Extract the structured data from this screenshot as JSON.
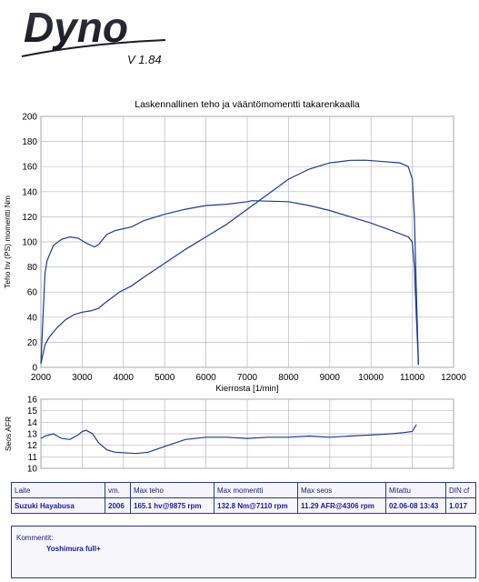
{
  "logo": {
    "title": "Dyno",
    "version": "V 1.84"
  },
  "chart_data": [
    {
      "type": "line",
      "title": "Laskennallinen teho ja vääntömomentti takarenkaalla",
      "xlabel": "Kierrosta [1/min]",
      "ylabel": "Teho hv (PS) momentti Nm",
      "xlim": [
        2000,
        12000
      ],
      "ylim": [
        0,
        200
      ],
      "xticks": [
        2000,
        3000,
        4000,
        5000,
        6000,
        7000,
        8000,
        9000,
        10000,
        11000,
        12000
      ],
      "yticks": [
        0,
        20,
        40,
        60,
        80,
        100,
        120,
        140,
        160,
        180,
        200
      ],
      "grid": true,
      "color": "#1f3a8f",
      "series": [
        {
          "x": [
            2000,
            2100,
            2200,
            2400,
            2600,
            2800,
            3000,
            3200,
            3400,
            3500,
            3700,
            3900,
            4200,
            4500,
            5000,
            5500,
            6000,
            6500,
            7000,
            7500,
            8000,
            8500,
            9000,
            9500,
            9875,
            10300,
            10700,
            10900,
            11000,
            11050,
            11100,
            11150
          ],
          "y": [
            3,
            18,
            24,
            32,
            38,
            42,
            44,
            45,
            47,
            50,
            55,
            60,
            65,
            72,
            83,
            94,
            104,
            114,
            126,
            138,
            150,
            158,
            163,
            165,
            165.1,
            164,
            163,
            160,
            150,
            120,
            60,
            2
          ]
        },
        {
          "x": [
            2000,
            2100,
            2150,
            2300,
            2500,
            2700,
            2900,
            3100,
            3300,
            3400,
            3600,
            3800,
            4200,
            4500,
            5000,
            5500,
            6000,
            6500,
            7000,
            7110,
            7500,
            8000,
            8500,
            9000,
            9500,
            10000,
            10500,
            10900,
            11000,
            11050,
            11100,
            11150
          ],
          "y": [
            3,
            75,
            85,
            97,
            102,
            104,
            103,
            99,
            96,
            98,
            106,
            109,
            112,
            117,
            122,
            126,
            129,
            130,
            132,
            132.8,
            132.5,
            132,
            129,
            125,
            120,
            115,
            109,
            104,
            100,
            80,
            40,
            2
          ]
        }
      ]
    },
    {
      "type": "line",
      "ylabel": "Seos AFR",
      "xlim": [
        2000,
        12000
      ],
      "ylim": [
        10,
        16
      ],
      "yticks": [
        10,
        11,
        12,
        13,
        14,
        15,
        16
      ],
      "grid": true,
      "color": "#1f3a8f",
      "series": [
        {
          "x": [
            2000,
            2100,
            2300,
            2500,
            2700,
            2900,
            3000,
            3100,
            3250,
            3400,
            3600,
            3800,
            4306,
            4600,
            5000,
            5500,
            6000,
            6500,
            7000,
            7500,
            8000,
            8500,
            9000,
            9500,
            10000,
            10500,
            10800,
            11000,
            11100
          ],
          "y": [
            12.6,
            12.8,
            13.0,
            12.6,
            12.5,
            12.9,
            13.2,
            13.3,
            13.0,
            12.2,
            11.6,
            11.4,
            11.29,
            11.4,
            11.9,
            12.5,
            12.7,
            12.7,
            12.6,
            12.7,
            12.7,
            12.8,
            12.7,
            12.8,
            12.9,
            13.0,
            13.1,
            13.2,
            13.8
          ]
        }
      ]
    }
  ],
  "table": {
    "headers": [
      "Laite",
      "vm.",
      "Max teho",
      "Max momentti",
      "Max seos",
      "Mitattu",
      "DIN cf"
    ],
    "values": [
      "Suzuki Hayabusa",
      "2006",
      "165.1 hv@9875 rpm",
      "132.8 Nm@7110 rpm",
      "11.29 AFR@4306 rpm",
      "02.06-08 13:43",
      "1.017"
    ]
  },
  "comment": {
    "label": "Kommentit:",
    "text": "Yoshimura full+"
  }
}
